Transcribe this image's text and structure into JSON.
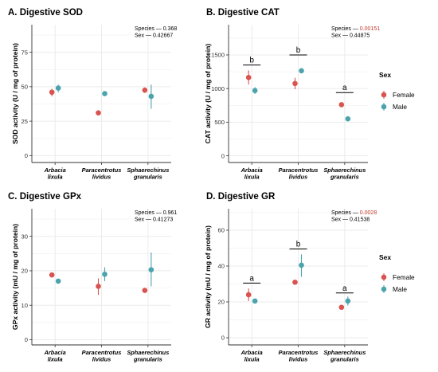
{
  "colors": {
    "female": "#d9534f",
    "male": "#4aa3ad",
    "grid": "#ebebeb",
    "axis": "#333333"
  },
  "legends": [
    {
      "title": "Sex",
      "items": [
        {
          "label": "Female",
          "key": "female"
        },
        {
          "label": "Male",
          "key": "male"
        }
      ]
    },
    {
      "title": "Sex",
      "items": [
        {
          "label": "Female",
          "key": "female"
        },
        {
          "label": "Male",
          "key": "male"
        }
      ]
    }
  ],
  "chart_data": [
    {
      "type": "scatter",
      "title": "A. Digestive SOD",
      "ylabel": "SOD activity (U / mg of protein)",
      "ylim": [
        -5,
        95
      ],
      "yticks": [
        "0",
        "25",
        "50",
        "75"
      ],
      "ytick_values": [
        0,
        25,
        50,
        75
      ],
      "categories": [
        [
          "Arbacia",
          "lixula"
        ],
        [
          "Paracentrotus",
          "lividus"
        ],
        [
          "Sphaerechinus",
          "granularis"
        ]
      ],
      "stats": [
        {
          "label": "Species —",
          "value": "0.368",
          "highlight": false
        },
        {
          "label": "Sex —",
          "value": "0.42667",
          "highlight": false
        }
      ],
      "series": [
        {
          "name": "Female",
          "key": "female",
          "values": [
            46,
            31,
            47.5
          ],
          "err_low": [
            43,
            null,
            45.5
          ],
          "err_high": [
            48.5,
            null,
            49.5
          ]
        },
        {
          "name": "Male",
          "key": "male",
          "values": [
            49,
            45,
            43
          ],
          "err_low": [
            46,
            null,
            34
          ],
          "err_high": [
            51.5,
            null,
            51.5
          ]
        }
      ],
      "sig_labels": []
    },
    {
      "type": "scatter",
      "title": "B. Digestive CAT",
      "ylabel": "CAT activity (U /  mg of protein)",
      "ylim": [
        -100,
        1950
      ],
      "yticks": [
        "0",
        "500",
        "1000",
        "1500"
      ],
      "ytick_values": [
        0,
        500,
        1000,
        1500
      ],
      "categories": [
        [
          "Arbacia",
          "lixula"
        ],
        [
          "Paracentrotus",
          "lividus"
        ],
        [
          "Sphaerechinus",
          "granularis"
        ]
      ],
      "stats": [
        {
          "label": "Species —",
          "value": "0.00151",
          "highlight": true
        },
        {
          "label": "Sex —",
          "value": "0.44875",
          "highlight": false
        }
      ],
      "series": [
        {
          "name": "Female",
          "key": "female",
          "values": [
            1165,
            1075,
            760
          ],
          "err_low": [
            1060,
            990,
            null
          ],
          "err_high": [
            1270,
            1160,
            null
          ]
        },
        {
          "name": "Male",
          "key": "male",
          "values": [
            970,
            1265,
            550
          ],
          "err_low": [
            920,
            null,
            null
          ],
          "err_high": [
            1020,
            null,
            null
          ]
        }
      ],
      "sig_labels": [
        {
          "text": "b",
          "y": 1350
        },
        {
          "text": "b",
          "y": 1500
        },
        {
          "text": "a",
          "y": 940
        }
      ]
    },
    {
      "type": "scatter",
      "title": "C. Digestive GPx",
      "ylabel": "GPx activity (mU / mg of protein)",
      "ylim": [
        -1.5,
        38
      ],
      "yticks": [
        "0",
        "10",
        "20",
        "30"
      ],
      "ytick_values": [
        0,
        10,
        20,
        30
      ],
      "categories": [
        [
          "Arbacia",
          "lixula"
        ],
        [
          "Paracentrotus",
          "lividus"
        ],
        [
          "Sphaerechinus",
          "granularis"
        ]
      ],
      "stats": [
        {
          "label": "Species —",
          "value": "0.961",
          "highlight": false
        },
        {
          "label": "Sex —",
          "value": "0.41273",
          "highlight": false
        }
      ],
      "series": [
        {
          "name": "Female",
          "key": "female",
          "values": [
            18.8,
            15.5,
            14.3
          ],
          "err_low": [
            null,
            13,
            null
          ],
          "err_high": [
            null,
            17.8,
            null
          ]
        },
        {
          "name": "Male",
          "key": "male",
          "values": [
            17,
            19,
            20.3
          ],
          "err_low": [
            null,
            17,
            15.5
          ],
          "err_high": [
            null,
            21,
            25.3
          ]
        }
      ],
      "sig_labels": []
    },
    {
      "type": "scatter",
      "title": "D. Digestive GR",
      "ylabel": "GR activity (mU / mg of protein)",
      "ylim": [
        -4,
        72
      ],
      "yticks": [
        "0",
        "20",
        "40",
        "60"
      ],
      "ytick_values": [
        0,
        20,
        40,
        60
      ],
      "categories": [
        [
          "Arbacia",
          "lixula"
        ],
        [
          "Paracentrotus",
          "lividus"
        ],
        [
          "Sphaerechinus",
          "granularis"
        ]
      ],
      "stats": [
        {
          "label": "Species —",
          "value": "0.0028",
          "highlight": true
        },
        {
          "label": "Sex —",
          "value": "0.41538",
          "highlight": false
        }
      ],
      "series": [
        {
          "name": "Female",
          "key": "female",
          "values": [
            24,
            31,
            17
          ],
          "err_low": [
            20.5,
            null,
            null
          ],
          "err_high": [
            27.5,
            null,
            null
          ]
        },
        {
          "name": "Male",
          "key": "male",
          "values": [
            20.5,
            40.5,
            20.5
          ],
          "err_low": [
            null,
            34,
            18
          ],
          "err_high": [
            null,
            46.5,
            23
          ]
        }
      ],
      "sig_labels": [
        {
          "text": "a",
          "y": 30.5
        },
        {
          "text": "b",
          "y": 49.5
        },
        {
          "text": "a",
          "y": 25
        }
      ]
    }
  ]
}
